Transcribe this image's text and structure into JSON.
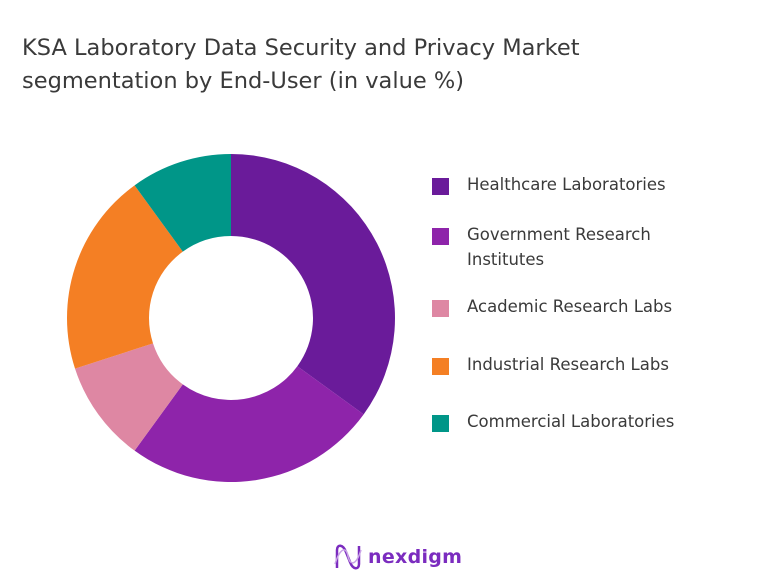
{
  "chart_data": {
    "type": "pie",
    "variant": "donut",
    "title": "KSA Laboratory Data Security and Privacy Market segmentation by End-User (in value %)",
    "categories": [
      "Healthcare Laboratories",
      "Government Research Institutes",
      "Academic Research Labs",
      "Industrial Research Labs",
      "Commercial Laboratories"
    ],
    "values": [
      35,
      25,
      10,
      20,
      10
    ],
    "colors": [
      "#6a1b9a",
      "#8e24aa",
      "#de87a3",
      "#f47f24",
      "#009688"
    ],
    "legend_position": "right"
  },
  "brand": {
    "logo_text": "nexdigm"
  }
}
